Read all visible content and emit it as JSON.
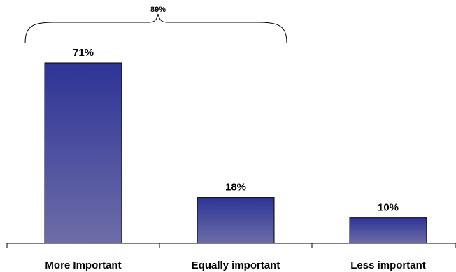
{
  "chart_data": {
    "type": "bar",
    "categories": [
      "More Important",
      "Equally important",
      "Less important"
    ],
    "values": [
      71,
      18,
      10
    ],
    "value_labels": [
      "71%",
      "18%",
      "10%"
    ],
    "ylim": [
      0,
      100
    ],
    "grid": false,
    "colors": {
      "bar_top": "#2e3496",
      "bar_bottom": "#6d6da8",
      "bar_edge": "#000000"
    },
    "annotation": {
      "label": "89%",
      "spans": [
        "More Important",
        "Equally important"
      ]
    }
  }
}
